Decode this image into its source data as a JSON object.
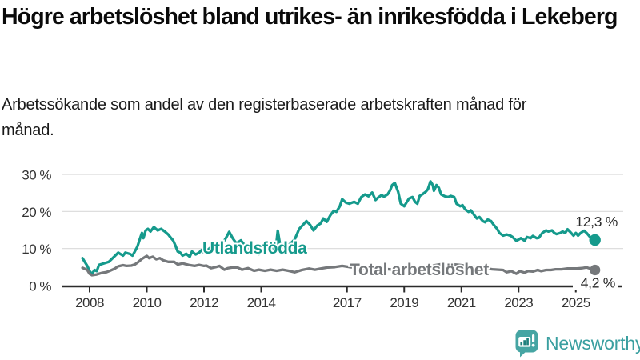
{
  "title": "Högre arbetslöshet bland utrikes- än inrikesfödda i Lekeberg",
  "subtitle": "Arbetssökande som andel av den registerbaserade arbetskraften månad för månad.",
  "footer": {
    "brand": "Newsworthy",
    "logo_icon": "newsworthy-chart-speech-bubble-icon"
  },
  "colors": {
    "accent_teal": "#159a8c",
    "line_gray": "#75787b",
    "axis_text": "#333333",
    "axis_line": "#2b2b2b",
    "grid": "#d9d9d9",
    "value_label": "#2b2b2b",
    "logo_teal": "#46a5a3",
    "logo_text_teal": "#3a9fa0"
  },
  "chart_data": {
    "type": "line",
    "x_unit": "decimal_year",
    "xlim": [
      2007.75,
      2025.67
    ],
    "ylim": [
      0,
      30
    ],
    "grid": "horizontal",
    "x_ticks": [
      2008,
      2010,
      2012,
      2014,
      2017,
      2019,
      2021,
      2023,
      2025
    ],
    "x_tick_labels": [
      "2008",
      "2010",
      "2012",
      "2014",
      "2017",
      "2019",
      "2021",
      "2023",
      "2025"
    ],
    "y_ticks": [
      0,
      10,
      20,
      30
    ],
    "y_tick_labels": [
      "0 %",
      "10 %",
      "20 %",
      "30 %"
    ],
    "series": [
      {
        "name": "Utlandsfödda",
        "color": "#159a8c",
        "end_label": "12,3 %",
        "end_value": 12.3,
        "points": [
          [
            2007.75,
            7.4
          ],
          [
            2007.92,
            5.3
          ],
          [
            2008.0,
            3.9
          ],
          [
            2008.08,
            3.1
          ],
          [
            2008.17,
            4.2
          ],
          [
            2008.25,
            3.9
          ],
          [
            2008.33,
            5.6
          ],
          [
            2008.5,
            6.0
          ],
          [
            2008.67,
            6.4
          ],
          [
            2008.83,
            7.6
          ],
          [
            2009.0,
            8.9
          ],
          [
            2009.08,
            8.5
          ],
          [
            2009.17,
            8.1
          ],
          [
            2009.25,
            8.9
          ],
          [
            2009.42,
            8.5
          ],
          [
            2009.5,
            8.1
          ],
          [
            2009.58,
            9.2
          ],
          [
            2009.67,
            10.5
          ],
          [
            2009.75,
            12.4
          ],
          [
            2009.83,
            14.2
          ],
          [
            2009.88,
            12.8
          ],
          [
            2009.96,
            14.9
          ],
          [
            2010.04,
            15.3
          ],
          [
            2010.13,
            14.6
          ],
          [
            2010.25,
            15.8
          ],
          [
            2010.38,
            14.9
          ],
          [
            2010.5,
            15.3
          ],
          [
            2010.63,
            14.6
          ],
          [
            2010.75,
            13.8
          ],
          [
            2010.83,
            13.0
          ],
          [
            2010.92,
            12.2
          ],
          [
            2011.0,
            10.8
          ],
          [
            2011.08,
            9.2
          ],
          [
            2011.17,
            8.9
          ],
          [
            2011.25,
            8.1
          ],
          [
            2011.38,
            8.6
          ],
          [
            2011.5,
            7.8
          ],
          [
            2011.58,
            9.2
          ],
          [
            2011.71,
            8.4
          ],
          [
            2011.83,
            8.9
          ],
          [
            2011.92,
            9.6
          ],
          [
            2012.0,
            8.9
          ],
          [
            2012.13,
            9.6
          ],
          [
            2012.25,
            10.4
          ],
          [
            2012.42,
            9.2
          ],
          [
            2012.58,
            10.8
          ],
          [
            2012.75,
            12.6
          ],
          [
            2012.88,
            14.5
          ],
          [
            2013.0,
            12.8
          ],
          [
            2013.13,
            11.4
          ],
          [
            2013.29,
            12.2
          ],
          [
            2013.46,
            10.6
          ],
          [
            2013.63,
            9.8
          ],
          [
            2013.75,
            9.2
          ],
          [
            2013.92,
            8.5
          ],
          [
            2014.04,
            9.6
          ],
          [
            2014.21,
            10.8
          ],
          [
            2014.33,
            11.5
          ],
          [
            2014.5,
            9.2
          ],
          [
            2014.58,
            14.8
          ],
          [
            2014.71,
            8.6
          ],
          [
            2014.83,
            9.8
          ],
          [
            2015.0,
            11.2
          ],
          [
            2015.17,
            12.4
          ],
          [
            2015.33,
            15.3
          ],
          [
            2015.5,
            16.7
          ],
          [
            2015.58,
            17.4
          ],
          [
            2015.71,
            16.4
          ],
          [
            2015.83,
            14.9
          ],
          [
            2015.96,
            16.2
          ],
          [
            2016.08,
            16.8
          ],
          [
            2016.17,
            18.1
          ],
          [
            2016.29,
            17.2
          ],
          [
            2016.42,
            19.0
          ],
          [
            2016.54,
            20.2
          ],
          [
            2016.63,
            19.9
          ],
          [
            2016.75,
            21.4
          ],
          [
            2016.83,
            23.3
          ],
          [
            2016.96,
            22.4
          ],
          [
            2017.08,
            22.1
          ],
          [
            2017.25,
            22.6
          ],
          [
            2017.38,
            22.1
          ],
          [
            2017.5,
            23.9
          ],
          [
            2017.63,
            24.6
          ],
          [
            2017.75,
            24.1
          ],
          [
            2017.88,
            25.1
          ],
          [
            2018.0,
            23.1
          ],
          [
            2018.08,
            23.7
          ],
          [
            2018.21,
            24.4
          ],
          [
            2018.29,
            24.0
          ],
          [
            2018.42,
            24.6
          ],
          [
            2018.5,
            25.6
          ],
          [
            2018.58,
            27.1
          ],
          [
            2018.67,
            27.7
          ],
          [
            2018.79,
            25.3
          ],
          [
            2018.88,
            22.1
          ],
          [
            2019.0,
            21.4
          ],
          [
            2019.08,
            22.4
          ],
          [
            2019.17,
            23.5
          ],
          [
            2019.29,
            23.9
          ],
          [
            2019.38,
            22.6
          ],
          [
            2019.46,
            22.1
          ],
          [
            2019.54,
            24.2
          ],
          [
            2019.63,
            24.6
          ],
          [
            2019.75,
            25.3
          ],
          [
            2019.83,
            26.0
          ],
          [
            2019.92,
            28.1
          ],
          [
            2020.0,
            27.1
          ],
          [
            2020.04,
            25.6
          ],
          [
            2020.13,
            27.1
          ],
          [
            2020.21,
            26.4
          ],
          [
            2020.29,
            24.6
          ],
          [
            2020.42,
            24.1
          ],
          [
            2020.54,
            23.9
          ],
          [
            2020.63,
            24.2
          ],
          [
            2020.75,
            23.9
          ],
          [
            2020.83,
            22.1
          ],
          [
            2020.96,
            21.4
          ],
          [
            2021.04,
            21.7
          ],
          [
            2021.13,
            20.6
          ],
          [
            2021.25,
            19.9
          ],
          [
            2021.33,
            20.3
          ],
          [
            2021.46,
            18.9
          ],
          [
            2021.54,
            18.1
          ],
          [
            2021.63,
            18.5
          ],
          [
            2021.75,
            17.4
          ],
          [
            2021.83,
            17.1
          ],
          [
            2021.92,
            17.8
          ],
          [
            2022.04,
            17.4
          ],
          [
            2022.13,
            16.4
          ],
          [
            2022.25,
            15.3
          ],
          [
            2022.33,
            14.2
          ],
          [
            2022.46,
            13.5
          ],
          [
            2022.58,
            13.8
          ],
          [
            2022.71,
            13.5
          ],
          [
            2022.79,
            13.1
          ],
          [
            2022.92,
            12.1
          ],
          [
            2023.0,
            12.4
          ],
          [
            2023.08,
            12.8
          ],
          [
            2023.21,
            12.1
          ],
          [
            2023.29,
            13.1
          ],
          [
            2023.42,
            12.8
          ],
          [
            2023.5,
            13.4
          ],
          [
            2023.63,
            12.8
          ],
          [
            2023.71,
            12.9
          ],
          [
            2023.83,
            14.2
          ],
          [
            2023.96,
            14.9
          ],
          [
            2024.04,
            14.6
          ],
          [
            2024.17,
            14.9
          ],
          [
            2024.25,
            14.2
          ],
          [
            2024.33,
            13.9
          ],
          [
            2024.46,
            14.2
          ],
          [
            2024.54,
            14.6
          ],
          [
            2024.63,
            14.2
          ],
          [
            2024.71,
            15.2
          ],
          [
            2024.79,
            14.6
          ],
          [
            2024.92,
            13.5
          ],
          [
            2025.0,
            14.2
          ],
          [
            2025.08,
            13.5
          ],
          [
            2025.17,
            14.2
          ],
          [
            2025.29,
            14.8
          ],
          [
            2025.38,
            14.2
          ],
          [
            2025.5,
            13.1
          ],
          [
            2025.58,
            12.1
          ],
          [
            2025.67,
            12.3
          ]
        ]
      },
      {
        "name": "Total arbetslöshet",
        "color": "#75787b",
        "end_label": "4,2 %",
        "end_value": 4.2,
        "points": [
          [
            2007.75,
            4.8
          ],
          [
            2007.92,
            4.2
          ],
          [
            2008.0,
            3.2
          ],
          [
            2008.08,
            2.8
          ],
          [
            2008.25,
            3.0
          ],
          [
            2008.42,
            3.4
          ],
          [
            2008.58,
            3.6
          ],
          [
            2008.71,
            4.0
          ],
          [
            2008.88,
            4.6
          ],
          [
            2009.0,
            5.2
          ],
          [
            2009.17,
            5.5
          ],
          [
            2009.29,
            5.3
          ],
          [
            2009.46,
            5.4
          ],
          [
            2009.58,
            5.7
          ],
          [
            2009.71,
            6.4
          ],
          [
            2009.83,
            7.2
          ],
          [
            2010.0,
            8.0
          ],
          [
            2010.08,
            7.4
          ],
          [
            2010.21,
            7.8
          ],
          [
            2010.33,
            7.1
          ],
          [
            2010.46,
            7.4
          ],
          [
            2010.58,
            6.8
          ],
          [
            2010.75,
            6.4
          ],
          [
            2010.96,
            6.4
          ],
          [
            2011.08,
            5.7
          ],
          [
            2011.25,
            6.0
          ],
          [
            2011.46,
            5.6
          ],
          [
            2011.67,
            5.3
          ],
          [
            2011.83,
            5.6
          ],
          [
            2012.0,
            5.3
          ],
          [
            2012.08,
            5.4
          ],
          [
            2012.25,
            4.7
          ],
          [
            2012.42,
            5.0
          ],
          [
            2012.54,
            5.3
          ],
          [
            2012.71,
            4.3
          ],
          [
            2012.83,
            4.7
          ],
          [
            2013.0,
            4.9
          ],
          [
            2013.17,
            4.9
          ],
          [
            2013.33,
            4.3
          ],
          [
            2013.54,
            4.7
          ],
          [
            2013.75,
            4.0
          ],
          [
            2013.92,
            4.3
          ],
          [
            2014.13,
            4.0
          ],
          [
            2014.33,
            4.3
          ],
          [
            2014.54,
            4.0
          ],
          [
            2014.75,
            4.3
          ],
          [
            2014.96,
            4.0
          ],
          [
            2015.17,
            3.6
          ],
          [
            2015.42,
            4.2
          ],
          [
            2015.67,
            4.6
          ],
          [
            2015.88,
            4.3
          ],
          [
            2016.08,
            4.6
          ],
          [
            2016.33,
            4.9
          ],
          [
            2016.58,
            5.0
          ],
          [
            2016.83,
            5.3
          ],
          [
            2017.08,
            5.0
          ],
          [
            2017.38,
            4.8
          ],
          [
            2017.67,
            4.6
          ],
          [
            2018.0,
            4.4
          ],
          [
            2018.33,
            4.5
          ],
          [
            2018.63,
            4.3
          ],
          [
            2018.92,
            4.4
          ],
          [
            2019.21,
            4.6
          ],
          [
            2019.5,
            4.8
          ],
          [
            2019.79,
            5.1
          ],
          [
            2020.08,
            5.5
          ],
          [
            2020.38,
            5.9
          ],
          [
            2020.63,
            5.8
          ],
          [
            2020.92,
            5.6
          ],
          [
            2021.21,
            5.3
          ],
          [
            2021.5,
            5.0
          ],
          [
            2021.79,
            4.7
          ],
          [
            2022.08,
            4.4
          ],
          [
            2022.29,
            4.3
          ],
          [
            2022.46,
            4.2
          ],
          [
            2022.58,
            3.6
          ],
          [
            2022.75,
            3.9
          ],
          [
            2022.92,
            3.2
          ],
          [
            2023.04,
            3.9
          ],
          [
            2023.21,
            3.5
          ],
          [
            2023.33,
            3.9
          ],
          [
            2023.5,
            3.8
          ],
          [
            2023.67,
            4.2
          ],
          [
            2023.79,
            3.9
          ],
          [
            2023.96,
            4.2
          ],
          [
            2024.13,
            4.2
          ],
          [
            2024.29,
            4.4
          ],
          [
            2024.5,
            4.4
          ],
          [
            2024.71,
            4.6
          ],
          [
            2024.88,
            4.6
          ],
          [
            2025.04,
            4.6
          ],
          [
            2025.21,
            4.7
          ],
          [
            2025.38,
            4.9
          ],
          [
            2025.5,
            4.6
          ],
          [
            2025.67,
            4.2
          ]
        ]
      }
    ]
  }
}
